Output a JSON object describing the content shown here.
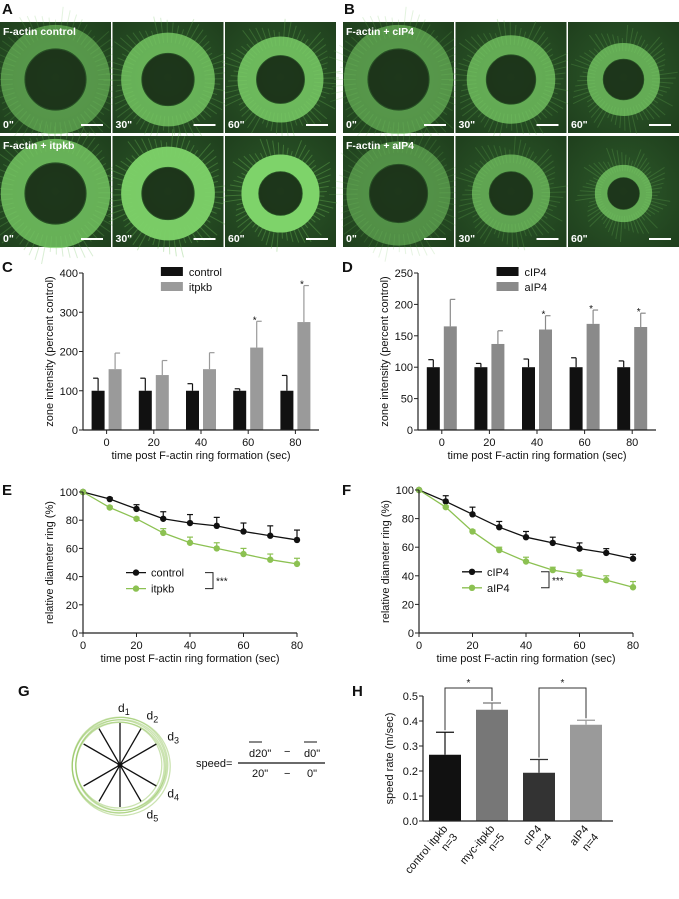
{
  "panels": {
    "A": "A",
    "B": "B",
    "C": "C",
    "D": "D",
    "E": "E",
    "F": "F",
    "G": "G",
    "H": "H"
  },
  "micrographs": {
    "A": {
      "rows": [
        {
          "label": "F-actin control",
          "times": [
            "0\"",
            "30\"",
            "60\""
          ],
          "ring_intensity": [
            0.55,
            0.75,
            0.8
          ],
          "ring_radius": [
            0.42,
            0.36,
            0.33
          ]
        },
        {
          "label": "F-actin + itpkb",
          "times": [
            "0\"",
            "30\"",
            "60\""
          ],
          "ring_intensity": [
            0.75,
            0.95,
            1.0
          ],
          "ring_radius": [
            0.42,
            0.36,
            0.3
          ]
        }
      ]
    },
    "B": {
      "rows": [
        {
          "label": "F-actin + cIP4",
          "times": [
            "0\"",
            "30\"",
            "60\""
          ],
          "ring_intensity": [
            0.55,
            0.7,
            0.7
          ],
          "ring_radius": [
            0.42,
            0.34,
            0.28
          ]
        },
        {
          "label": "F-actin + aIP4",
          "times": [
            "0\"",
            "30\"",
            "60\""
          ],
          "ring_intensity": [
            0.5,
            0.65,
            0.7
          ],
          "ring_radius": [
            0.4,
            0.3,
            0.22
          ]
        }
      ]
    }
  },
  "chart_data": [
    {
      "id": "C",
      "type": "bar",
      "categories": [
        "0",
        "20",
        "40",
        "60",
        "80"
      ],
      "xlabel": "time post F-actin ring formation (sec)",
      "ylabel": "zone intensity (percent control)",
      "ylim": [
        0,
        400
      ],
      "yticks": [
        "0",
        "100",
        "200",
        "300",
        "400"
      ],
      "series": [
        {
          "name": "control",
          "color": "#111111",
          "values": [
            100,
            100,
            100,
            100,
            100
          ],
          "errors": [
            32,
            32,
            18,
            5,
            39
          ]
        },
        {
          "name": "itpkb",
          "color": "#9a9a9a",
          "values": [
            155,
            140,
            155,
            210,
            275
          ],
          "errors": [
            41,
            37,
            42,
            67,
            93
          ],
          "significant": [
            false,
            false,
            false,
            true,
            true
          ]
        }
      ],
      "sig_label": "*"
    },
    {
      "id": "D",
      "type": "bar",
      "categories": [
        "0",
        "20",
        "40",
        "60",
        "80"
      ],
      "xlabel": "time post F-actin ring formation (sec)",
      "ylabel": "zone intensity (percent control)",
      "ylim": [
        0,
        250
      ],
      "yticks": [
        "0",
        "50",
        "100",
        "150",
        "200",
        "250"
      ],
      "series": [
        {
          "name": "cIP4",
          "color": "#111111",
          "values": [
            100,
            100,
            100,
            100,
            100
          ],
          "errors": [
            12,
            6,
            13,
            15,
            10
          ]
        },
        {
          "name": "aIP4",
          "color": "#8a8a8a",
          "values": [
            165,
            137,
            160,
            169,
            164
          ],
          "errors": [
            43,
            21,
            22,
            22,
            22
          ],
          "significant": [
            false,
            false,
            true,
            true,
            true
          ]
        }
      ],
      "sig_label": "*"
    },
    {
      "id": "E",
      "type": "line",
      "x": [
        0,
        10,
        20,
        30,
        40,
        50,
        60,
        70,
        80
      ],
      "xticks": [
        "0",
        "20",
        "40",
        "60",
        "80"
      ],
      "xlabel": "time post F-actin ring formation (sec)",
      "ylabel": "relative diameter ring (%)",
      "ylim": [
        0,
        100
      ],
      "yticks": [
        "0",
        "20",
        "40",
        "60",
        "80",
        "100"
      ],
      "series": [
        {
          "name": "control",
          "color": "#111111",
          "values": [
            100,
            95,
            88,
            81,
            78,
            76,
            72,
            69,
            66
          ],
          "errors": [
            0,
            1,
            3,
            5,
            6,
            6,
            6,
            7,
            7
          ]
        },
        {
          "name": "itpkb",
          "color": "#8cc152",
          "values": [
            100,
            89,
            81,
            71,
            64,
            60,
            56,
            52,
            49
          ],
          "errors": [
            0,
            1,
            1,
            3,
            4,
            4,
            4,
            4,
            4
          ]
        }
      ],
      "sig_label": "***"
    },
    {
      "id": "F",
      "type": "line",
      "x": [
        0,
        10,
        20,
        30,
        40,
        50,
        60,
        70,
        80
      ],
      "xticks": [
        "0",
        "20",
        "40",
        "60",
        "80"
      ],
      "xlabel": "time post F-actin ring formation (sec)",
      "ylabel": "relative diameter ring (%)",
      "ylim": [
        0,
        100
      ],
      "yticks": [
        "0",
        "20",
        "40",
        "60",
        "80",
        "100"
      ],
      "series": [
        {
          "name": "cIP4",
          "color": "#111111",
          "values": [
            100,
            92,
            83,
            74,
            67,
            63,
            59,
            56,
            52
          ],
          "errors": [
            0,
            4,
            5,
            4,
            4,
            4,
            4,
            3,
            3
          ]
        },
        {
          "name": "aIP4",
          "color": "#8cc152",
          "values": [
            100,
            88,
            71,
            58,
            50,
            44,
            41,
            37,
            32
          ],
          "errors": [
            0,
            1,
            1,
            2,
            3,
            2,
            3,
            3,
            4
          ]
        }
      ],
      "sig_label": "***"
    },
    {
      "id": "H",
      "type": "bar",
      "categories": [
        "control itpkb",
        "myc-itpkb",
        "cIP4",
        "aIP4"
      ],
      "n": [
        "n=3",
        "n=5",
        "n=4",
        "n=4"
      ],
      "ylabel": "speed rate (m/sec)",
      "ylim": [
        0,
        0.5
      ],
      "yticks": [
        "0.0",
        "0.1",
        "0.2",
        "0.3",
        "0.4",
        "0.5"
      ],
      "values": [
        0.265,
        0.445,
        0.193,
        0.385
      ],
      "errors": [
        0.09,
        0.027,
        0.053,
        0.018
      ],
      "colors": [
        "#111111",
        "#777777",
        "#333333",
        "#9a9a9a"
      ],
      "comparisons": [
        {
          "pair": [
            0,
            1
          ],
          "label": "*"
        },
        {
          "pair": [
            2,
            3
          ],
          "label": "*"
        }
      ]
    }
  ],
  "diagram_G": {
    "diameters": [
      "d1",
      "d2",
      "d3",
      "d4",
      "d5"
    ],
    "formula": {
      "lhs": "speed=",
      "num_a": "d20\"",
      "minus": "−",
      "num_b": "d0\"",
      "den_a": "20\"",
      "den_b": "0\""
    }
  }
}
